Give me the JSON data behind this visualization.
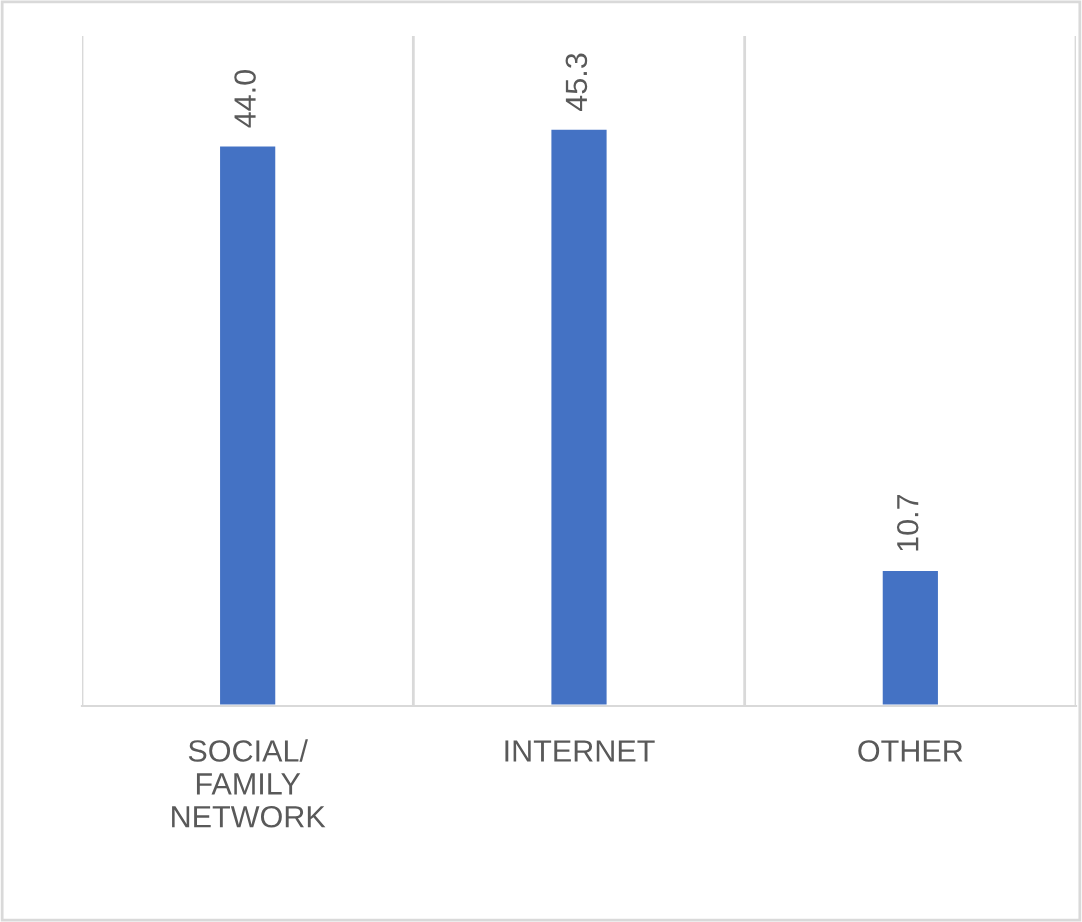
{
  "chart_data": {
    "type": "bar",
    "categories": [
      "SOCIAL/\nFAMILY\nNETWORK",
      "INTERNET",
      "OTHER"
    ],
    "values": [
      44.0,
      45.3,
      10.7
    ],
    "value_labels": [
      "44.0",
      "45.3",
      "10.7"
    ],
    "color": "#4472c4",
    "grid": "x"
  }
}
